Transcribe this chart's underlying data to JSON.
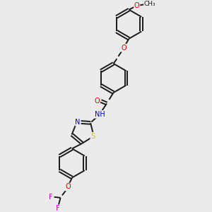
{
  "bg_color": "#ebebeb",
  "bond_color": "#1a1a1a",
  "atom_colors": {
    "O": "#e00000",
    "N": "#0000e0",
    "S": "#c8c800",
    "F": "#e000e0",
    "C": "#1a1a1a"
  },
  "lw": 1.4,
  "fs": 7.0,
  "r_hex": 0.6,
  "r_th": 0.48
}
